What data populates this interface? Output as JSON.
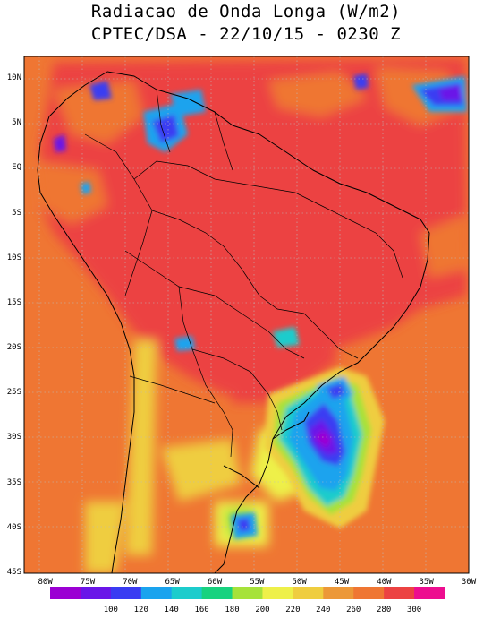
{
  "header": {
    "title": "Radiacao de Onda Longa (W/m2)",
    "subtitle": "CPTEC/DSA - 22/10/15 - 0230 Z"
  },
  "axes": {
    "lat_labels": [
      "10N",
      "5N",
      "EQ",
      "5S",
      "10S",
      "15S",
      "20S",
      "25S",
      "30S",
      "35S",
      "40S",
      "45S"
    ],
    "lat_values": [
      10,
      5,
      0,
      -5,
      -10,
      -15,
      -20,
      -25,
      -30,
      -35,
      -40,
      -45
    ],
    "lon_labels": [
      "80W",
      "75W",
      "70W",
      "65W",
      "60W",
      "55W",
      "50W",
      "45W",
      "40W",
      "35W",
      "30W"
    ],
    "lon_values": [
      -80,
      -75,
      -70,
      -65,
      -60,
      -55,
      -50,
      -45,
      -40,
      -35,
      -30
    ],
    "lat_range": [
      -45,
      12.5
    ],
    "lon_range": [
      -82.5,
      -30
    ],
    "grid": true
  },
  "colorbar": {
    "colors": [
      "#9b00d3",
      "#6a16e8",
      "#3a3cf2",
      "#1aa3ee",
      "#1ccccc",
      "#18d27f",
      "#a6e23a",
      "#eef049",
      "#efcd3f",
      "#ec9838",
      "#ef7633",
      "#ec4242",
      "#ed0d8f"
    ],
    "labels": [
      "100",
      "120",
      "140",
      "160",
      "180",
      "200",
      "220",
      "240",
      "260",
      "280",
      "300"
    ]
  }
}
